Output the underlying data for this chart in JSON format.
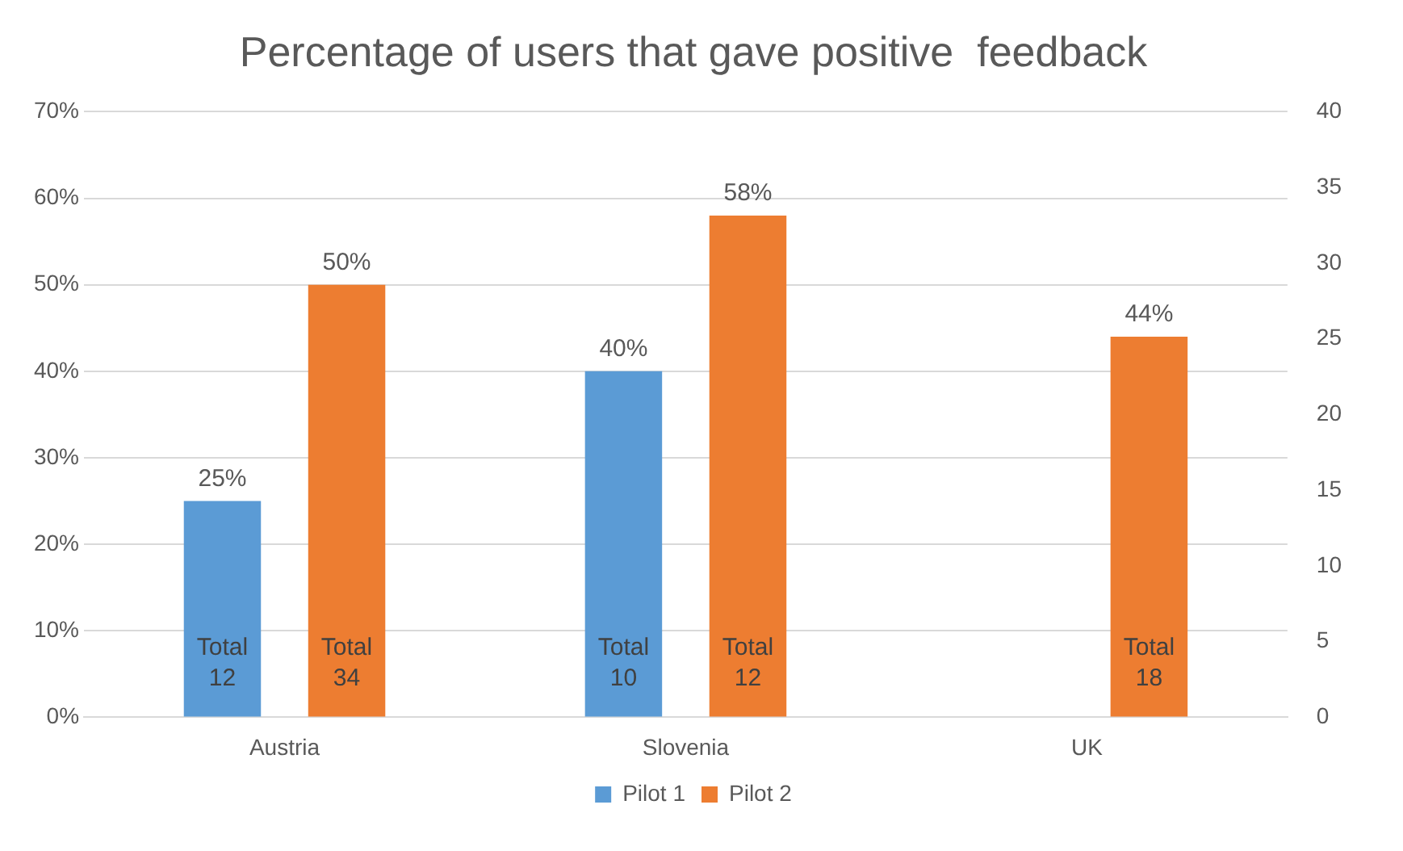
{
  "chart_data": {
    "type": "bar",
    "title": "Percentage of users that gave positive  feedback",
    "categories": [
      "Austria",
      "Slovenia",
      "UK"
    ],
    "series": [
      {
        "name": "Pilot 1",
        "color": "#5b9bd5",
        "values": [
          25,
          40,
          null
        ],
        "value_labels": [
          "25%",
          "40%",
          null
        ]
      },
      {
        "name": "Pilot 2",
        "color": "#ed7d31",
        "values": [
          50,
          58,
          44
        ],
        "value_labels": [
          "50%",
          "58%",
          "44%"
        ]
      }
    ],
    "ylim": [
      0,
      70
    ],
    "yticks": [
      {
        "value": 0,
        "label": "0%"
      },
      {
        "value": 10,
        "label": "10%"
      },
      {
        "value": 20,
        "label": "20%"
      },
      {
        "value": 30,
        "label": "30%"
      },
      {
        "value": 40,
        "label": "40%"
      },
      {
        "value": 50,
        "label": "50%"
      },
      {
        "value": 60,
        "label": "60%"
      },
      {
        "value": 70,
        "label": "70%"
      }
    ],
    "y2lim": [
      0,
      40
    ],
    "y2ticks": [
      0,
      5,
      10,
      15,
      20,
      25,
      30,
      35,
      40
    ],
    "annotations": [
      "Total\n12",
      "Total\n34",
      "Total\n10",
      "Total\n12",
      "Total\n18"
    ],
    "grid": "y",
    "legend": "bottom"
  }
}
